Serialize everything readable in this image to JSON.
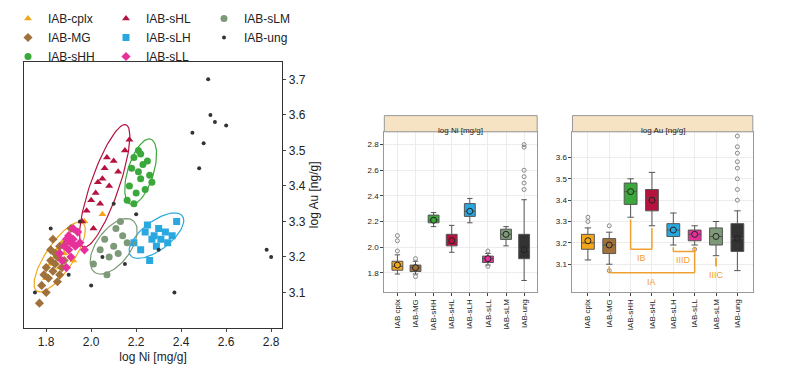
{
  "chart_data": [
    {
      "type": "scatter",
      "x_label": "log Ni [mg/g]",
      "y_label": "log Au [ng/g]",
      "xlim": [
        1.7,
        2.85
      ],
      "xticks": [
        1.8,
        {
          "value": 2,
          "label": "2.0"
        },
        2.2,
        2.4,
        2.6,
        2.8
      ],
      "ylim": [
        3.0,
        3.75
      ],
      "yticks": [
        3.1,
        3.2,
        3.3,
        3.4,
        3.5,
        3.6,
        3.7
      ],
      "grid": false,
      "legend": "top left",
      "series": [
        {
          "name": "IAB-cplx",
          "color": "#f2a71b",
          "marker": "triangle",
          "x": [
            1.8,
            1.82,
            1.84,
            1.85,
            1.86,
            1.87,
            1.88,
            1.9,
            1.92,
            1.97,
            2.05
          ],
          "y": [
            3.14,
            3.18,
            3.2,
            3.22,
            3.17,
            3.24,
            3.21,
            3.26,
            3.19,
            3.3,
            3.32
          ],
          "ellipse": {
            "center": [
              1.86,
              3.2
            ],
            "u": [
              0.11,
              0.09
            ],
            "v": [
              -0.03,
              0.04
            ]
          }
        },
        {
          "name": "IAB-MG",
          "color": "#a0713a",
          "marker": "diamond",
          "x": [
            1.78,
            1.79,
            1.8,
            1.81,
            1.82,
            1.82,
            1.83,
            1.84,
            1.84,
            1.85,
            1.85,
            1.86,
            1.87,
            1.88,
            1.89,
            1.8,
            1.83,
            1.86,
            1.91,
            1.77
          ],
          "y": [
            3.12,
            3.15,
            3.17,
            3.14,
            3.19,
            3.22,
            3.16,
            3.18,
            3.21,
            3.2,
            3.13,
            3.23,
            3.17,
            3.19,
            3.24,
            3.1,
            3.25,
            3.15,
            3.28,
            3.07
          ]
        },
        {
          "name": "IAB-sHH",
          "color": "#3aa83a",
          "marker": "circle",
          "x": [
            2.17,
            2.18,
            2.19,
            2.2,
            2.21,
            2.21,
            2.22,
            2.23,
            2.24,
            2.25,
            2.26,
            2.19,
            2.22,
            2.27,
            2.16
          ],
          "y": [
            3.4,
            3.45,
            3.48,
            3.38,
            3.44,
            3.5,
            3.42,
            3.46,
            3.39,
            3.47,
            3.43,
            3.35,
            3.49,
            3.41,
            3.36
          ],
          "ellipse": {
            "center": [
              2.22,
              3.44
            ],
            "u": [
              0.05,
              0.09
            ],
            "v": [
              -0.05,
              0.02
            ]
          }
        },
        {
          "name": "IAB-sHL",
          "color": "#b5123f",
          "marker": "triangle",
          "x": [
            1.96,
            1.98,
            2.0,
            2.02,
            2.03,
            2.04,
            2.05,
            2.06,
            2.08,
            2.1,
            2.12,
            2.15,
            2.17,
            2.01,
            2.07
          ],
          "y": [
            3.3,
            3.33,
            3.36,
            3.38,
            3.41,
            3.35,
            3.42,
            3.45,
            3.4,
            3.47,
            3.44,
            3.5,
            3.53,
            3.28,
            3.48
          ],
          "ellipse": {
            "center": [
              2.06,
              3.4
            ],
            "u": [
              0.1,
              0.17
            ],
            "v": [
              -0.05,
              0.03
            ]
          }
        },
        {
          "name": "IAB-sLH",
          "color": "#29a8e0",
          "marker": "square",
          "x": [
            2.19,
            2.22,
            2.24,
            2.25,
            2.27,
            2.28,
            2.29,
            2.3,
            2.31,
            2.33,
            2.34,
            2.36,
            2.38,
            2.26
          ],
          "y": [
            3.24,
            3.22,
            3.27,
            3.29,
            3.25,
            3.26,
            3.23,
            3.28,
            3.25,
            3.27,
            3.24,
            3.26,
            3.3,
            3.19
          ],
          "ellipse": {
            "center": [
              2.29,
              3.26
            ],
            "u": [
              0.12,
              0.05
            ],
            "v": [
              -0.02,
              0.04
            ]
          }
        },
        {
          "name": "IAB-sLL",
          "color": "#e8309a",
          "marker": "diamond",
          "x": [
            1.86,
            1.88,
            1.89,
            1.9,
            1.9,
            1.91,
            1.91,
            1.92,
            1.93,
            1.94,
            1.95,
            1.87,
            1.92,
            1.89,
            1.97
          ],
          "y": [
            3.21,
            3.23,
            3.25,
            3.22,
            3.26,
            3.24,
            3.2,
            3.25,
            3.23,
            3.27,
            3.24,
            3.19,
            3.28,
            3.17,
            3.22
          ]
        },
        {
          "name": "IAB-sLM",
          "color": "#7d9a78",
          "marker": "circle",
          "x": [
            2.01,
            2.04,
            2.06,
            2.08,
            2.1,
            2.11,
            2.12,
            2.14,
            2.16,
            2.07,
            2.13
          ],
          "y": [
            3.18,
            3.22,
            3.25,
            3.2,
            3.23,
            3.28,
            3.21,
            3.26,
            3.24,
            3.15,
            3.3
          ],
          "ellipse": {
            "center": [
              2.1,
              3.23
            ],
            "u": [
              0.1,
              0.06
            ],
            "v": [
              -0.03,
              0.05
            ]
          }
        },
        {
          "name": "IAB-ung",
          "color": "#333333",
          "marker": "dot",
          "x": [
            1.75,
            1.82,
            1.9,
            1.95,
            2.0,
            2.05,
            2.1,
            2.15,
            2.2,
            2.3,
            2.37,
            2.45,
            2.5,
            2.52,
            2.55,
            2.6,
            2.78,
            2.8,
            2.53,
            2.48
          ],
          "y": [
            3.1,
            3.28,
            3.15,
            3.3,
            3.12,
            3.2,
            3.35,
            3.18,
            3.32,
            3.22,
            3.1,
            3.55,
            3.52,
            3.7,
            3.58,
            3.57,
            3.22,
            3.2,
            3.6,
            3.45
          ]
        }
      ]
    },
    {
      "type": "box",
      "title": "log Ni [mg/g]",
      "categories": [
        "IAB cplx",
        "IAB-MG",
        "IAB-sHH",
        "IAB-sHL",
        "IAB-sLH",
        "IAB-sLL",
        "IAB-sLM",
        "IAB-ung"
      ],
      "colors": [
        "#f2a71b",
        "#a0713a",
        "#3aa83a",
        "#b5123f",
        "#29a8e0",
        "#e8309a",
        "#7d9a78",
        "#333333"
      ],
      "ylim": [
        1.65,
        2.9
      ],
      "yticks": [
        1.8,
        {
          "value": 2,
          "label": "2.0"
        },
        2.2,
        2.4,
        2.6,
        2.8
      ],
      "grid": true,
      "lower": [
        1.79,
        1.79,
        2.16,
        1.96,
        2.19,
        1.86,
        2.01,
        1.74
      ],
      "q1": [
        1.82,
        1.81,
        2.19,
        2.01,
        2.24,
        1.88,
        2.06,
        1.91
      ],
      "median": [
        1.85,
        1.84,
        2.21,
        2.05,
        2.28,
        1.91,
        2.1,
        1.98
      ],
      "q3": [
        1.89,
        1.86,
        2.25,
        2.1,
        2.34,
        1.93,
        2.14,
        2.1
      ],
      "upper": [
        1.94,
        1.89,
        2.27,
        2.17,
        2.38,
        1.95,
        2.16,
        2.37
      ],
      "mean": [
        1.86,
        1.84,
        2.21,
        2.05,
        2.28,
        1.91,
        2.1,
        1.98
      ],
      "outliers": [
        [
          1.97,
          2.05,
          2.09
        ],
        [
          1.77,
          1.91
        ],
        [],
        [],
        [],
        [
          1.85,
          1.97
        ],
        [],
        [
          2.45,
          2.5,
          2.55,
          2.6,
          2.78,
          2.8
        ]
      ]
    },
    {
      "type": "box",
      "title": "log Au [ng/g]",
      "categories": [
        "IAB cplx",
        "IAB-MG",
        "IAB-sHH",
        "IAB-sHL",
        "IAB-sLH",
        "IAB-sLL",
        "IAB-sLM",
        "IAB-ung"
      ],
      "colors": [
        "#f2a71b",
        "#a0713a",
        "#3aa83a",
        "#b5123f",
        "#29a8e0",
        "#e8309a",
        "#7d9a78",
        "#333333"
      ],
      "ylim": [
        2.97,
        3.72
      ],
      "yticks": [
        3.1,
        3.2,
        3.3,
        3.4,
        3.5,
        3.6
      ],
      "grid": true,
      "lower": [
        3.12,
        3.1,
        3.32,
        3.28,
        3.19,
        3.19,
        3.14,
        3.07
      ],
      "q1": [
        3.17,
        3.15,
        3.38,
        3.35,
        3.23,
        3.21,
        3.19,
        3.16
      ],
      "median": [
        3.2,
        3.19,
        3.44,
        3.41,
        3.26,
        3.24,
        3.23,
        3.22
      ],
      "q3": [
        3.24,
        3.22,
        3.48,
        3.45,
        3.29,
        3.26,
        3.27,
        3.29
      ],
      "upper": [
        3.27,
        3.25,
        3.5,
        3.53,
        3.34,
        3.28,
        3.3,
        3.35
      ],
      "mean": [
        3.21,
        3.19,
        3.44,
        3.4,
        3.26,
        3.24,
        3.23,
        3.22
      ],
      "outliers": [
        [
          3.3,
          3.32
        ],
        [
          3.07,
          3.28
        ],
        [],
        [],
        [],
        [
          3.17
        ],
        [],
        [
          3.4,
          3.45,
          3.5,
          3.55,
          3.58,
          3.62,
          3.65,
          3.7
        ]
      ],
      "brackets": [
        {
          "label": "IB",
          "categories": [
            "IAB-sHH",
            "IAB-sHL"
          ],
          "y": 3.17,
          "color": "#f0a030"
        },
        {
          "label": "IA",
          "categories": [
            "IAB-MG",
            "IAB-sLL"
          ],
          "y": 3.06,
          "color": "#f0a030"
        },
        {
          "label": "IIID",
          "categories": [
            "IAB-sLH",
            "IAB-sLL"
          ],
          "y": 3.16,
          "color": "#f0a030"
        },
        {
          "label": "IIIC",
          "categories": [
            "IAB-sLM"
          ],
          "y": 3.09,
          "color": "#f0a030"
        }
      ]
    }
  ]
}
